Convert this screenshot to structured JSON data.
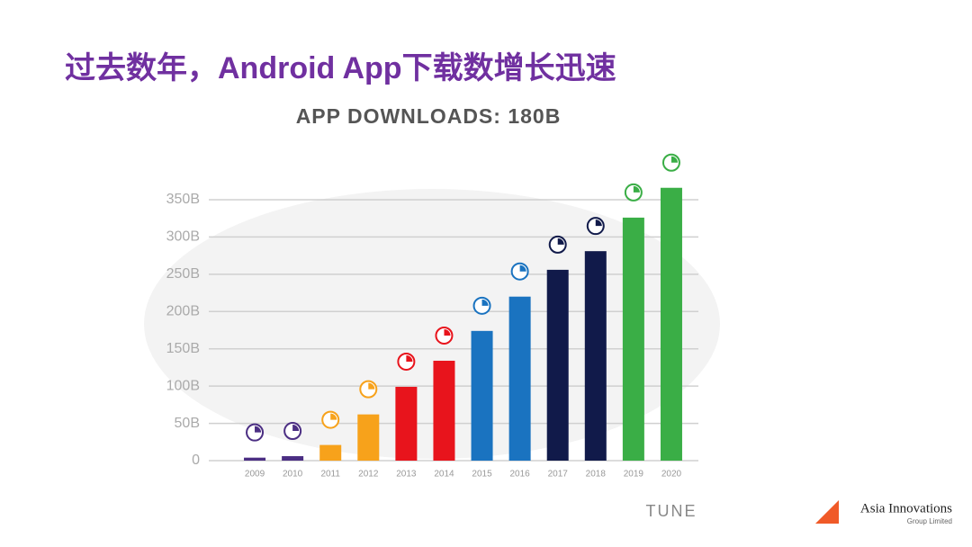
{
  "heading": "过去数年，Android App下载数增长迅速",
  "chart_data": {
    "type": "bar",
    "title": "APP DOWNLOADS: 180B",
    "categories": [
      "2009",
      "2010",
      "2011",
      "2012",
      "2013",
      "2014",
      "2015",
      "2016",
      "2017",
      "2018",
      "2019",
      "2020"
    ],
    "values": [
      4,
      6,
      21,
      62,
      99,
      134,
      174,
      220,
      256,
      281,
      326,
      366
    ],
    "colors": [
      "#4b2e83",
      "#4b2e83",
      "#f7a21b",
      "#f7a21b",
      "#e8141c",
      "#e8141c",
      "#1a73c0",
      "#1a73c0",
      "#111a4a",
      "#111a4a",
      "#3aae46",
      "#3aae46"
    ],
    "ylim": [
      0,
      350
    ],
    "yticks": [
      0,
      {
        "value": 50,
        "label": "50B"
      },
      {
        "value": 100,
        "label": "100B"
      },
      {
        "value": 150,
        "label": "150B"
      },
      {
        "value": 200,
        "label": "200B"
      },
      {
        "value": 250,
        "label": "250B"
      },
      {
        "value": 300,
        "label": "300B"
      },
      {
        "value": 350,
        "label": "350B"
      }
    ],
    "grid": true
  },
  "source": "TUNE",
  "logo": {
    "name": "Asia Innovations",
    "sub": "Group Limited"
  }
}
